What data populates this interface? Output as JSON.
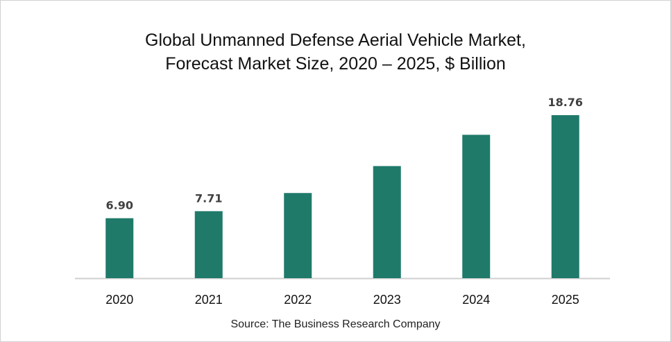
{
  "chart_data": {
    "type": "bar",
    "title": "Global Unmanned Defense Aerial Vehicle Market, Forecast Market Size, 2020 – 2025, $ Billion",
    "title_lines": [
      "Global Unmanned Defense Aerial Vehicle Market,",
      "Forecast Market Size, 2020 – 2025, $ Billion"
    ],
    "categories": [
      "2020",
      "2021",
      "2022",
      "2023",
      "2024",
      "2025"
    ],
    "values": [
      6.9,
      7.71,
      9.8,
      12.9,
      16.5,
      18.76
    ],
    "data_labels": [
      "6.90",
      "7.71",
      "",
      "",
      "",
      "18.76"
    ],
    "xlabel": "",
    "ylabel": "",
    "ylim": [
      0,
      19.5
    ],
    "grid": false,
    "legend": "none",
    "bar_color": "#1f7a6a",
    "source": "Source: The Business Research Company"
  }
}
